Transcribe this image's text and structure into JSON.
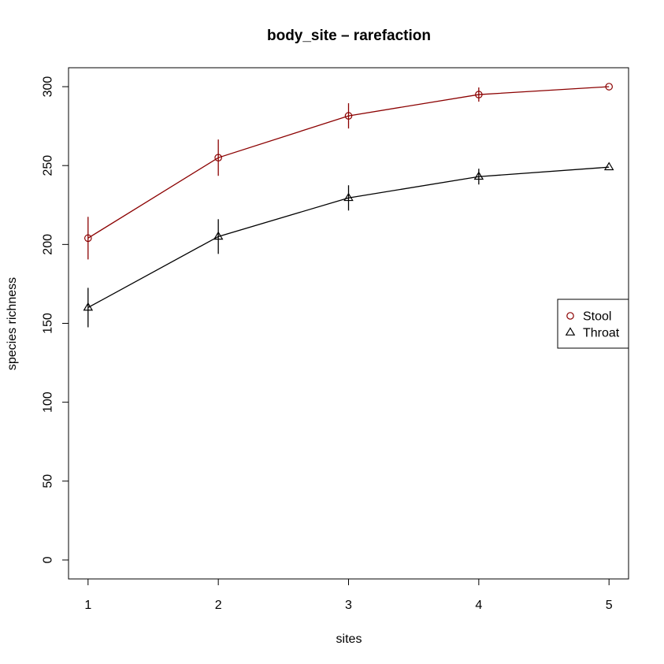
{
  "chart_data": {
    "type": "line",
    "title": "body_site – rarefaction",
    "xlabel": "sites",
    "ylabel": "species richness",
    "x": [
      1,
      2,
      3,
      4,
      5
    ],
    "xticks": [
      "1",
      "2",
      "3",
      "4",
      "5"
    ],
    "yticks": [
      "0",
      "50",
      "100",
      "150",
      "200",
      "250",
      "300"
    ],
    "xlim": [
      0.85,
      5.15
    ],
    "ylim": [
      -12,
      312
    ],
    "grid": false,
    "legend_position": "right",
    "series": [
      {
        "name": "Stool",
        "color": "#8b0000",
        "marker": "circle",
        "values": [
          204,
          255,
          281.5,
          295,
          300
        ],
        "errors": [
          13.5,
          11.5,
          8,
          4.5,
          0
        ]
      },
      {
        "name": "Throat",
        "color": "#000000",
        "marker": "triangle",
        "values": [
          160,
          205,
          229.5,
          243,
          249
        ],
        "errors": [
          12.5,
          11,
          8,
          5,
          0
        ]
      }
    ]
  }
}
